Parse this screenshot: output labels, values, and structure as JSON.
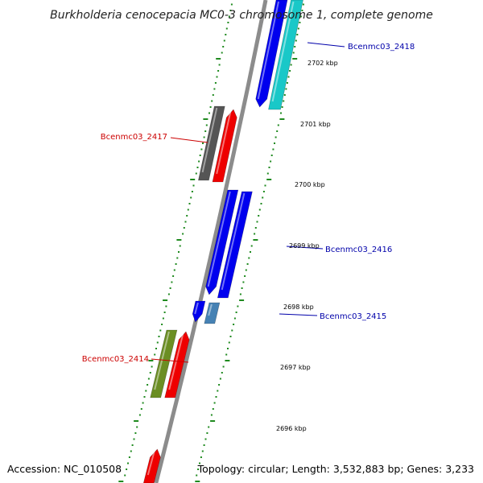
{
  "title": "Burkholderia cenocepacia MC0-3 chromosome 1, complete genome",
  "accession": "Accession: NC_010508",
  "topology": "Topology: circular; Length: 3,532,883 bp; Genes: 3,233",
  "ticks": [
    "2702 kbp",
    "2701 kbp",
    "2700 kbp",
    "2699 kbp",
    "2698 kbp",
    "2697 kbp",
    "2696 kbp"
  ],
  "gene_labels": [
    {
      "text": "Bcenmc03_2418",
      "color": "#0000aa"
    },
    {
      "text": "Bcenmc03_2417",
      "color": "#cc0000"
    },
    {
      "text": "Bcenmc03_2416",
      "color": "#0000aa"
    },
    {
      "text": "Bcenmc03_2415",
      "color": "#0000aa"
    },
    {
      "text": "Bcenmc03_2414",
      "color": "#cc0000"
    }
  ],
  "colors": {
    "backbone": "#8c8c8c",
    "dots": "#1f8a1f",
    "blue": "#0000ee",
    "cyan": "#19c8c8",
    "red": "#ee0000",
    "gray": "#555555",
    "steelblue": "#4682b4",
    "olive": "#6b8e23"
  }
}
